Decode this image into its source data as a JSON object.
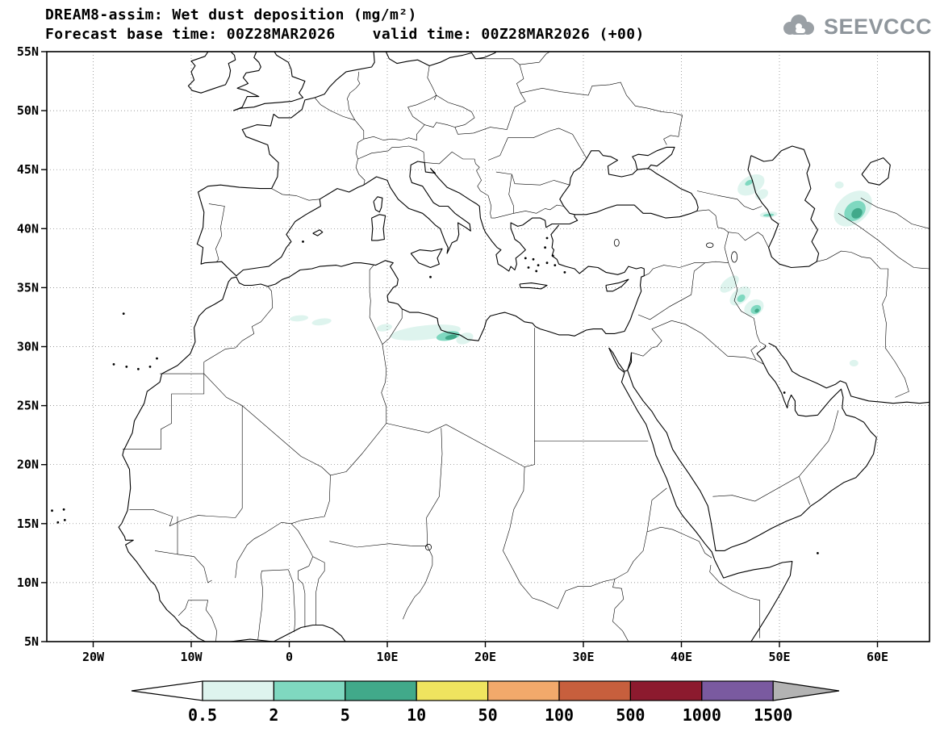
{
  "header": {
    "title_line1": "DREAM8-assim: Wet dust deposition (mg/m²)",
    "forecast_base_label": "Forecast base time: 00Z28MAR2026",
    "valid_label": "valid time: 00Z28MAR2026 (+00)",
    "logo_text": "SEEVCCC"
  },
  "axes": {
    "lat_ticks": [
      {
        "label": "55N",
        "lat": 55
      },
      {
        "label": "50N",
        "lat": 50
      },
      {
        "label": "45N",
        "lat": 45
      },
      {
        "label": "40N",
        "lat": 40
      },
      {
        "label": "35N",
        "lat": 35
      },
      {
        "label": "30N",
        "lat": 30
      },
      {
        "label": "25N",
        "lat": 25
      },
      {
        "label": "20N",
        "lat": 20
      },
      {
        "label": "15N",
        "lat": 15
      },
      {
        "label": "10N",
        "lat": 10
      },
      {
        "label": "5N",
        "lat": 5
      }
    ],
    "lon_ticks": [
      {
        "label": "20W",
        "lon": -20
      },
      {
        "label": "10W",
        "lon": -10
      },
      {
        "label": "0",
        "lon": 0
      },
      {
        "label": "10E",
        "lon": 10
      },
      {
        "label": "20E",
        "lon": 20
      },
      {
        "label": "30E",
        "lon": 30
      },
      {
        "label": "40E",
        "lon": 40
      },
      {
        "label": "50E",
        "lon": 50
      },
      {
        "label": "60E",
        "lon": 60
      }
    ]
  },
  "colorbar": {
    "labels": [
      "0.5",
      "2",
      "5",
      "10",
      "50",
      "100",
      "500",
      "1000",
      "1500"
    ],
    "segment_colors": [
      "#def4ee",
      "#7fd8c0",
      "#41a98a",
      "#efe45f",
      "#f2a96b",
      "#c75f3d",
      "#8c1a2e",
      "#7a5aa0"
    ],
    "left_arrow_color": "#ffffff",
    "right_arrow_color": "#b3b3b3"
  },
  "chart_data": {
    "type": "heatmap",
    "title": "DREAM8-assim: Wet dust deposition (mg/m²)",
    "forecast_base_time": "00Z28MAR2026",
    "valid_time": "00Z28MAR2026 (+00)",
    "unit": "mg/m²",
    "legend_position": "bottom",
    "grid": "dotted, 5 deg lat x 10 deg lon",
    "map_extent": {
      "lon_min": -24.7,
      "lon_max": 65.3,
      "lat_min": 5,
      "lat_max": 55
    },
    "scale_levels": [
      0.5,
      2,
      5,
      10,
      50,
      100,
      500,
      1000,
      1500
    ],
    "deposition_areas": [
      {
        "region": "caucasus-main",
        "lon": 47.1,
        "lat": 43.7,
        "rx": 1.5,
        "ry": 0.75,
        "rot": -30,
        "level": 0,
        "range": "0.5-2"
      },
      {
        "region": "caucasus-tail",
        "lon": 48.2,
        "lat": 42.9,
        "rx": 0.7,
        "ry": 0.4,
        "rot": -30,
        "level": 0,
        "range": "0.5-2"
      },
      {
        "region": "caucasus-core",
        "lon": 46.9,
        "lat": 43.9,
        "rx": 0.45,
        "ry": 0.2,
        "rot": -30,
        "level": 1,
        "range": "2-5"
      },
      {
        "region": "azerbaijan-coast-halo",
        "lon": 48.9,
        "lat": 41.2,
        "rx": 0.9,
        "ry": 0.25,
        "rot": -5,
        "level": 0,
        "range": "0.5-2"
      },
      {
        "region": "azerbaijan-coast",
        "lon": 48.9,
        "lat": 41.15,
        "rx": 0.55,
        "ry": 0.12,
        "rot": -5,
        "level": 1,
        "range": "2-5"
      },
      {
        "region": "turkmenistan-outer",
        "lon": 57.5,
        "lat": 41.7,
        "rx": 2.2,
        "ry": 1.25,
        "rot": -40,
        "level": 0,
        "range": "0.5-2"
      },
      {
        "region": "turkmenistan-mid",
        "lon": 57.7,
        "lat": 41.5,
        "rx": 1.2,
        "ry": 0.75,
        "rot": -40,
        "level": 1,
        "range": "2-5"
      },
      {
        "region": "turkmenistan-core",
        "lon": 57.9,
        "lat": 41.3,
        "rx": 0.6,
        "ry": 0.4,
        "rot": -40,
        "level": 2,
        "range": "5-10"
      },
      {
        "region": "turkmenistan-north-spot",
        "lon": 56.1,
        "lat": 43.7,
        "rx": 0.45,
        "ry": 0.3,
        "rot": 0,
        "level": 0,
        "range": "0.5-2"
      },
      {
        "region": "iraq-nw-band",
        "lon": 44.9,
        "lat": 35.3,
        "rx": 1.15,
        "ry": 0.5,
        "rot": -40,
        "level": 0,
        "range": "0.5-2"
      },
      {
        "region": "iraq-mid-band",
        "lon": 46.0,
        "lat": 34.3,
        "rx": 1.25,
        "ry": 0.6,
        "rot": -40,
        "level": 0,
        "range": "0.5-2"
      },
      {
        "region": "iraq-mid-core",
        "lon": 46.1,
        "lat": 34.1,
        "rx": 0.45,
        "ry": 0.28,
        "rot": -40,
        "level": 1,
        "range": "2-5"
      },
      {
        "region": "zagros-halo",
        "lon": 47.4,
        "lat": 33.3,
        "rx": 1.05,
        "ry": 0.65,
        "rot": -30,
        "level": 0,
        "range": "0.5-2"
      },
      {
        "region": "zagros-core",
        "lon": 47.6,
        "lat": 33.15,
        "rx": 0.55,
        "ry": 0.35,
        "rot": -30,
        "level": 1,
        "range": "2-5"
      },
      {
        "region": "zagros-center",
        "lon": 47.7,
        "lat": 33.05,
        "rx": 0.24,
        "ry": 0.16,
        "rot": -30,
        "level": 2,
        "range": "5-10"
      },
      {
        "region": "se-iran-spot",
        "lon": 57.6,
        "lat": 28.6,
        "rx": 0.45,
        "ry": 0.28,
        "rot": 0,
        "level": 0,
        "range": "0.5-2"
      },
      {
        "region": "libya-band-west",
        "lon": 9.7,
        "lat": 31.6,
        "rx": 0.8,
        "ry": 0.3,
        "rot": -10,
        "level": 0,
        "range": "0.5-2"
      },
      {
        "region": "libya-band-main",
        "lon": 13.9,
        "lat": 31.2,
        "rx": 3.6,
        "ry": 0.6,
        "rot": -6,
        "level": 0,
        "range": "0.5-2"
      },
      {
        "region": "libya-east-tail",
        "lon": 17.9,
        "lat": 30.7,
        "rx": 0.9,
        "ry": 0.45,
        "rot": -20,
        "level": 0,
        "range": "0.5-2"
      },
      {
        "region": "libya-core-teal",
        "lon": 16.2,
        "lat": 30.9,
        "rx": 1.2,
        "ry": 0.38,
        "rot": -10,
        "level": 1,
        "range": "2-5"
      },
      {
        "region": "libya-core-green",
        "lon": 16.5,
        "lat": 30.8,
        "rx": 0.6,
        "ry": 0.2,
        "rot": -10,
        "level": 2,
        "range": "5-10"
      },
      {
        "region": "algeria-west-streak",
        "lon": 1.0,
        "lat": 32.4,
        "rx": 0.95,
        "ry": 0.25,
        "rot": -5,
        "level": 0,
        "range": "0.5-2"
      },
      {
        "region": "algeria-east-streak",
        "lon": 3.3,
        "lat": 32.1,
        "rx": 1.0,
        "ry": 0.28,
        "rot": -8,
        "level": 0,
        "range": "0.5-2"
      }
    ]
  }
}
